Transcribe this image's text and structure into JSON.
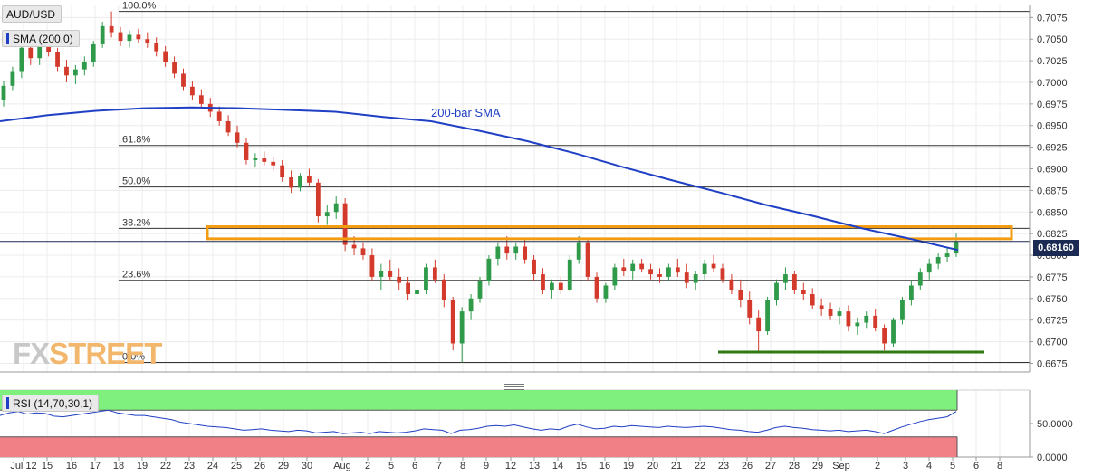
{
  "chart_data": {
    "type": "candlestick",
    "symbol": "AUD/USD",
    "sma_label": "SMA (200,0)",
    "sma_annotation": "200-bar SMA",
    "current_price": "0.68160",
    "ylim": [
      0.6665,
      0.709
    ],
    "y_ticks": [
      "0.7075",
      "0.7050",
      "0.7025",
      "0.7000",
      "0.6975",
      "0.6950",
      "0.6925",
      "0.6900",
      "0.6875",
      "0.6850",
      "0.6825",
      "0.6800",
      "0.6775",
      "0.6750",
      "0.6725",
      "0.6700",
      "0.6675"
    ],
    "x_ticks": [
      "Jul 12",
      "15",
      "16",
      "17",
      "18",
      "19",
      "22",
      "23",
      "24",
      "25",
      "26",
      "29",
      "30",
      "Aug",
      "2",
      "5",
      "6",
      "7",
      "8",
      "9",
      "12",
      "13",
      "14",
      "15",
      "16",
      "19",
      "20",
      "21",
      "22",
      "23",
      "26",
      "27",
      "28",
      "29",
      "Sep",
      "2",
      "3",
      "4",
      "5",
      "6",
      "8"
    ],
    "fibonacci": [
      {
        "label": "100.0%",
        "value": 0.7082
      },
      {
        "label": "61.8%",
        "value": 0.6927
      },
      {
        "label": "50.0%",
        "value": 0.6879
      },
      {
        "label": "38.2%",
        "value": 0.6831
      },
      {
        "label": "23.6%",
        "value": 0.6771
      },
      {
        "label": "0.0%",
        "value": 0.6676
      }
    ],
    "resistance_zone": [
      0.6819,
      0.6833
    ],
    "support_line": 0.6688,
    "candles_ohlc": [
      [
        0.698,
        0.7002,
        0.6972,
        0.6996
      ],
      [
        0.6996,
        0.7018,
        0.699,
        0.7012
      ],
      [
        0.7012,
        0.7045,
        0.7005,
        0.704
      ],
      [
        0.704,
        0.705,
        0.702,
        0.7028
      ],
      [
        0.7028,
        0.7048,
        0.702,
        0.7042
      ],
      [
        0.7042,
        0.7055,
        0.703,
        0.7035
      ],
      [
        0.7035,
        0.704,
        0.7012,
        0.7018
      ],
      [
        0.7018,
        0.7026,
        0.7,
        0.7008
      ],
      [
        0.7008,
        0.702,
        0.6998,
        0.7015
      ],
      [
        0.7015,
        0.703,
        0.7008,
        0.7024
      ],
      [
        0.7024,
        0.7048,
        0.7018,
        0.7044
      ],
      [
        0.7044,
        0.707,
        0.704,
        0.7065
      ],
      [
        0.7065,
        0.7082,
        0.7052,
        0.7058
      ],
      [
        0.7058,
        0.7064,
        0.7042,
        0.7048
      ],
      [
        0.7048,
        0.706,
        0.704,
        0.7055
      ],
      [
        0.7055,
        0.7062,
        0.7045,
        0.705
      ],
      [
        0.705,
        0.7058,
        0.704,
        0.7046
      ],
      [
        0.7046,
        0.7052,
        0.703,
        0.7036
      ],
      [
        0.7036,
        0.7042,
        0.7018,
        0.7024
      ],
      [
        0.7024,
        0.703,
        0.7005,
        0.701
      ],
      [
        0.701,
        0.7016,
        0.699,
        0.6995
      ],
      [
        0.6995,
        0.7002,
        0.698,
        0.6985
      ],
      [
        0.6985,
        0.6992,
        0.697,
        0.6975
      ],
      [
        0.6975,
        0.6982,
        0.696,
        0.6966
      ],
      [
        0.6966,
        0.6972,
        0.695,
        0.6955
      ],
      [
        0.6955,
        0.6962,
        0.6938,
        0.6942
      ],
      [
        0.6942,
        0.695,
        0.6925,
        0.693
      ],
      [
        0.693,
        0.6936,
        0.6905,
        0.691
      ],
      [
        0.691,
        0.6918,
        0.6902,
        0.6912
      ],
      [
        0.6912,
        0.692,
        0.6904,
        0.6908
      ],
      [
        0.6908,
        0.6914,
        0.6898,
        0.6904
      ],
      [
        0.6904,
        0.691,
        0.6885,
        0.689
      ],
      [
        0.689,
        0.6898,
        0.6872,
        0.6878
      ],
      [
        0.6878,
        0.6895,
        0.6874,
        0.6892
      ],
      [
        0.6892,
        0.69,
        0.688,
        0.6884
      ],
      [
        0.6884,
        0.6888,
        0.6838,
        0.6845
      ],
      [
        0.6845,
        0.6858,
        0.6835,
        0.685
      ],
      [
        0.685,
        0.6868,
        0.6842,
        0.686
      ],
      [
        0.686,
        0.6866,
        0.6805,
        0.6812
      ],
      [
        0.6812,
        0.6822,
        0.68,
        0.6808
      ],
      [
        0.6808,
        0.6815,
        0.6795,
        0.68
      ],
      [
        0.68,
        0.6808,
        0.677,
        0.6775
      ],
      [
        0.6775,
        0.679,
        0.676,
        0.6782
      ],
      [
        0.6782,
        0.6795,
        0.677,
        0.6775
      ],
      [
        0.6775,
        0.6785,
        0.676,
        0.6768
      ],
      [
        0.6768,
        0.6775,
        0.6748,
        0.6755
      ],
      [
        0.6755,
        0.6765,
        0.674,
        0.676
      ],
      [
        0.676,
        0.679,
        0.6755,
        0.6786
      ],
      [
        0.6786,
        0.6795,
        0.6768,
        0.6772
      ],
      [
        0.6772,
        0.6778,
        0.674,
        0.6748
      ],
      [
        0.6748,
        0.6752,
        0.669,
        0.6698
      ],
      [
        0.6698,
        0.674,
        0.6676,
        0.6735
      ],
      [
        0.6735,
        0.6755,
        0.6725,
        0.675
      ],
      [
        0.675,
        0.6775,
        0.6745,
        0.677
      ],
      [
        0.677,
        0.68,
        0.6765,
        0.6796
      ],
      [
        0.6796,
        0.6815,
        0.6788,
        0.681
      ],
      [
        0.681,
        0.6822,
        0.6795,
        0.6802
      ],
      [
        0.6802,
        0.6815,
        0.6795,
        0.681
      ],
      [
        0.681,
        0.6818,
        0.679,
        0.6795
      ],
      [
        0.6795,
        0.68,
        0.677,
        0.6778
      ],
      [
        0.6778,
        0.6785,
        0.6755,
        0.676
      ],
      [
        0.676,
        0.6772,
        0.675,
        0.6768
      ],
      [
        0.6768,
        0.6775,
        0.6755,
        0.676
      ],
      [
        0.676,
        0.68,
        0.6758,
        0.6795
      ],
      [
        0.6795,
        0.6822,
        0.679,
        0.6815
      ],
      [
        0.6815,
        0.682,
        0.677,
        0.6775
      ],
      [
        0.6775,
        0.678,
        0.6745,
        0.675
      ],
      [
        0.675,
        0.6768,
        0.6745,
        0.6765
      ],
      [
        0.6765,
        0.679,
        0.676,
        0.6786
      ],
      [
        0.6786,
        0.6796,
        0.6776,
        0.6782
      ],
      [
        0.6782,
        0.6795,
        0.6772,
        0.679
      ],
      [
        0.679,
        0.6796,
        0.678,
        0.6784
      ],
      [
        0.6784,
        0.679,
        0.6772,
        0.6778
      ],
      [
        0.6778,
        0.6785,
        0.6768,
        0.6775
      ],
      [
        0.6775,
        0.679,
        0.677,
        0.6786
      ],
      [
        0.6786,
        0.6796,
        0.6775,
        0.678
      ],
      [
        0.678,
        0.679,
        0.6762,
        0.6768
      ],
      [
        0.6768,
        0.6782,
        0.676,
        0.6778
      ],
      [
        0.6778,
        0.6795,
        0.6772,
        0.679
      ],
      [
        0.679,
        0.68,
        0.678,
        0.6785
      ],
      [
        0.6785,
        0.679,
        0.6768,
        0.6772
      ],
      [
        0.6772,
        0.6778,
        0.6755,
        0.676
      ],
      [
        0.676,
        0.6772,
        0.674,
        0.6748
      ],
      [
        0.6748,
        0.6758,
        0.672,
        0.6728
      ],
      [
        0.6728,
        0.6736,
        0.6688,
        0.6712
      ],
      [
        0.6712,
        0.6752,
        0.6708,
        0.6748
      ],
      [
        0.6748,
        0.6772,
        0.6742,
        0.6768
      ],
      [
        0.6768,
        0.6786,
        0.676,
        0.6778
      ],
      [
        0.6778,
        0.6782,
        0.6755,
        0.676
      ],
      [
        0.676,
        0.6768,
        0.6748,
        0.6755
      ],
      [
        0.6755,
        0.6762,
        0.6738,
        0.6742
      ],
      [
        0.6742,
        0.675,
        0.673,
        0.6738
      ],
      [
        0.6738,
        0.6745,
        0.6725,
        0.673
      ],
      [
        0.673,
        0.674,
        0.672,
        0.6735
      ],
      [
        0.6735,
        0.6742,
        0.6712,
        0.6718
      ],
      [
        0.6718,
        0.6728,
        0.6708,
        0.6722
      ],
      [
        0.6722,
        0.6735,
        0.6715,
        0.673
      ],
      [
        0.673,
        0.6738,
        0.6712,
        0.6716
      ],
      [
        0.6716,
        0.672,
        0.669,
        0.6698
      ],
      [
        0.6698,
        0.6728,
        0.6694,
        0.6725
      ],
      [
        0.6725,
        0.6752,
        0.672,
        0.6748
      ],
      [
        0.6748,
        0.677,
        0.6742,
        0.6765
      ],
      [
        0.6765,
        0.6785,
        0.676,
        0.678
      ],
      [
        0.678,
        0.6796,
        0.6772,
        0.679
      ],
      [
        0.679,
        0.6802,
        0.6784,
        0.6798
      ],
      [
        0.6798,
        0.6808,
        0.6792,
        0.6802
      ],
      [
        0.6802,
        0.6825,
        0.6798,
        0.6816
      ]
    ],
    "sma_200": [
      0.6955,
      0.6962,
      0.6967,
      0.697,
      0.6971,
      0.697,
      0.6968,
      0.6966,
      0.696,
      0.6955,
      0.6944,
      0.6932,
      0.6918,
      0.6902,
      0.6887,
      0.6873,
      0.6858,
      0.6845,
      0.6831,
      0.6819,
      0.6806
    ],
    "rsi": {
      "label": "RSI (14,70,30,1)",
      "ylim": [
        0,
        100
      ],
      "ticks": [
        "50.0000",
        "0.0000"
      ],
      "overbought": 70,
      "oversold": 30,
      "values": [
        62,
        66,
        68,
        64,
        66,
        65,
        61,
        60,
        62,
        64,
        66,
        68,
        70,
        66,
        64,
        62,
        62,
        60,
        58,
        56,
        52,
        50,
        48,
        46,
        45,
        44,
        42,
        40,
        41,
        42,
        40,
        39,
        38,
        40,
        39,
        36,
        37,
        38,
        35,
        36,
        37,
        35,
        38,
        37,
        36,
        37,
        39,
        42,
        41,
        40,
        35,
        40,
        41,
        43,
        46,
        47,
        46,
        48,
        45,
        42,
        40,
        42,
        41,
        46,
        49,
        45,
        42,
        43,
        46,
        45,
        47,
        46,
        45,
        44,
        46,
        45,
        44,
        45,
        46,
        45,
        43,
        41,
        40,
        38,
        37,
        40,
        44,
        46,
        44,
        43,
        41,
        40,
        39,
        40,
        38,
        39,
        40,
        38,
        35,
        40,
        45,
        49,
        53,
        56,
        58,
        60,
        68
      ]
    }
  }
}
